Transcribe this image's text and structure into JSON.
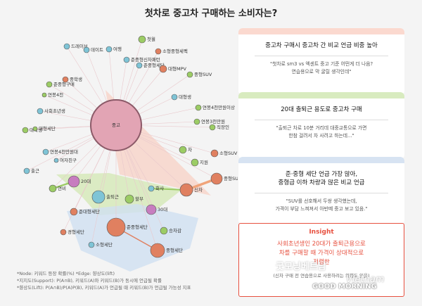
{
  "title": "첫차로 중고차 구매하는 소비자는?",
  "nodes": [
    {
      "id": "center",
      "label": "중고",
      "color": "#e2a4b4"
    },
    {
      "id": "n1",
      "label": "드레이브",
      "color": "#7fc4d6"
    },
    {
      "id": "n2",
      "label": "데이트",
      "color": "#7fc4d6"
    },
    {
      "id": "n3",
      "label": "여행",
      "color": "#7fc4d6"
    },
    {
      "id": "n4",
      "label": "첫월",
      "color": "#9ccc65"
    },
    {
      "id": "n5",
      "label": "소형중형세펙",
      "color": "#e08060"
    },
    {
      "id": "n6",
      "label": "준중형신차패턴",
      "color": "#7fc4d6"
    },
    {
      "id": "n7",
      "label": "준중형세단",
      "color": "#7fc4d6"
    },
    {
      "id": "n8",
      "label": "대형MPV",
      "color": "#e08060"
    },
    {
      "id": "n9",
      "label": "중형SUV",
      "color": "#9ccc65"
    },
    {
      "id": "n10",
      "label": "준중형구매",
      "color": "#9ccc65"
    },
    {
      "id": "n11",
      "label": "중학생",
      "color": "#e08060"
    },
    {
      "id": "n12",
      "label": "연봉4천",
      "color": "#9ccc65"
    },
    {
      "id": "n13",
      "label": "대형생",
      "color": "#7fc4d6"
    },
    {
      "id": "n14",
      "label": "연봉4천만원이상",
      "color": "#9ccc65"
    },
    {
      "id": "n15",
      "label": "사회초년생",
      "color": "#7fc4d6"
    },
    {
      "id": "n16",
      "label": "대학생",
      "color": "#9ccc65"
    },
    {
      "id": "n17",
      "label": "대형세단",
      "color": "#9ccc65"
    },
    {
      "id": "n18",
      "label": "연봉3천만원",
      "color": "#9ccc65"
    },
    {
      "id": "n19",
      "label": "직장인",
      "color": "#9ccc65"
    },
    {
      "id": "n20",
      "label": "연봉4천만원대",
      "color": "#7fc4d6"
    },
    {
      "id": "n21",
      "label": "여자친구",
      "color": "#7fc4d6"
    },
    {
      "id": "n22",
      "label": "출근",
      "color": "#7fc4d6"
    },
    {
      "id": "n23",
      "label": "차",
      "color": "#9ccc65"
    },
    {
      "id": "n24",
      "label": "지원",
      "color": "#9ccc65"
    },
    {
      "id": "n25",
      "label": "소형SUV",
      "color": "#e08060"
    },
    {
      "id": "n26",
      "label": "신차",
      "color": "#e08060"
    },
    {
      "id": "n27",
      "label": "중형SUV",
      "color": "#e08060"
    },
    {
      "id": "n28",
      "label": "20대",
      "color": "#c77dbf"
    },
    {
      "id": "n29",
      "label": "연비",
      "color": "#9ccc65"
    },
    {
      "id": "n30",
      "label": "회사",
      "color": "#7fc4d6"
    },
    {
      "id": "n31",
      "label": "출퇴근",
      "color": "#7fc4d6"
    },
    {
      "id": "n32",
      "label": "할부",
      "color": "#9ccc65"
    },
    {
      "id": "n33",
      "label": "30대",
      "color": "#c77dbf"
    },
    {
      "id": "n34",
      "label": "준대형세단",
      "color": "#e08060"
    },
    {
      "id": "n35",
      "label": "준중형세단",
      "color": "#e08060"
    },
    {
      "id": "n36",
      "label": "경형세단",
      "color": "#e08060"
    },
    {
      "id": "n37",
      "label": "소형세단",
      "color": "#7fc4d6"
    },
    {
      "id": "n38",
      "label": "중형세단",
      "color": "#e08060"
    },
    {
      "id": "n39",
      "label": "승차감",
      "color": "#9ccc65"
    }
  ],
  "notes": {
    "line1": "*Node: 키워드 등장 확률(%) *Edge: 향상도(lift)",
    "line2": "*지지도(Support): P(A∩B), 키워드(A)와 키워드(B)가 동시에 언급될 확률",
    "line3": "*향상도(Lift): P(A∩B)/P(A)P(B), 키워드(A)가 언급될 때 키워드(B)가 언급될 가능성 지표"
  },
  "cards": [
    {
      "head": "중고차 구매시 중고차 간 비교 언급 비중 높아",
      "q1": "\"첫차로 sm3 vs 엑센트 중고 기준 어떤게 더 나음?",
      "q2": "연습용으로 막 굴릴 생각인데\""
    },
    {
      "head": "20대 출퇴근 용도로 중고차 구매",
      "q1": "\"출퇴근 차로 10분 거리데 대중교통으로 가면",
      "q2": "한참 걸려서 차 사려고 하는데...\""
    },
    {
      "head1": "준·중형 세단 언급 가장 많아,",
      "head2": "중형급 이하 차량과 많은 비교 언급",
      "q1": "\"SUV를 선호해서 두쌍 생각했는데,",
      "q2": "가격이 부담 느껴져서 아반떼 중고 보고 있음.\""
    }
  ],
  "insight": {
    "title": "Insight",
    "l1": "사회초년생인 20대가 출퇴근용으로",
    "l2": "차를 구매할 때 가격이 상대적으로",
    "l3": "저렴한",
    "note": "(신차 구매 전 연습용으로 사용하려는 의향도 있음)"
  },
  "watermark": {
    "logo": "굿모닝베트남",
    "text": "GOOD MORNING",
    "script": "Vietnam"
  }
}
